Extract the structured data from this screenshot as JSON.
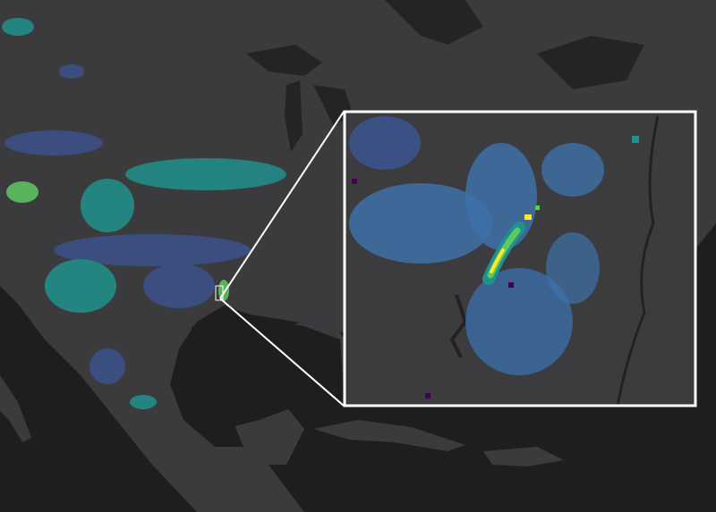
{
  "map": {
    "basemap_style": "dark",
    "colors": {
      "ocean": "#1e1e20",
      "land": "#3b3b3e",
      "lake": "#242427",
      "inset_border": "#ffffff",
      "precip_low": "#440154",
      "precip_mid_low": "#3b528b",
      "precip_mid": "#21918c",
      "precip_mid_high": "#5ec962",
      "precip_high": "#fde725"
    },
    "colormap": "viridis",
    "inset": {
      "shown": true,
      "description_visible": false
    }
  }
}
